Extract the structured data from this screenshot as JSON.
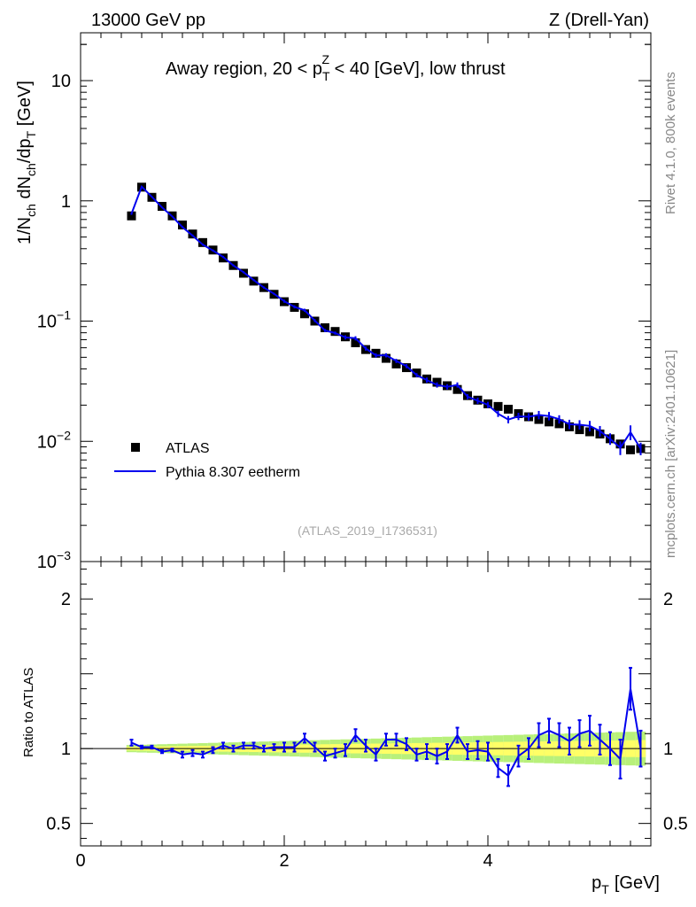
{
  "header": {
    "energy": "13000 GeV pp",
    "process": "Z (Drell-Yan)"
  },
  "side": {
    "rivet": "Rivet 4.1.0,  800k events",
    "mcplots": "mcplots.cern.ch [arXiv:2401.10621]"
  },
  "chart_data": {
    "type": "scatter",
    "title_parts": [
      "Away region, 20 < p",
      "T",
      "Z",
      " < 40 [GeV], low thrust"
    ],
    "analysis": "(ATLAS_2019_I1736531)",
    "xlabel_main": "p",
    "xlabel_sub": "T",
    "xlabel_unit": "[GeV]",
    "ylabel_parts": [
      "1/N",
      "ch",
      " dN",
      "ch",
      "/dp",
      "T",
      " [GeV]"
    ],
    "ratio_ylabel": "Ratio to ATLAS",
    "xlim": [
      0,
      5.6
    ],
    "ylim": [
      0.001,
      25
    ],
    "ratio_ylim": [
      0.35,
      2.25
    ],
    "yscale": "log",
    "x_ticks": [
      "0",
      "2",
      "4"
    ],
    "y_ticks": [
      {
        "base": "10",
        "exp": "",
        "value": 10
      },
      {
        "base": "1",
        "exp": "",
        "value": 1
      },
      {
        "base": "10",
        "exp": "−1",
        "value": 0.1
      },
      {
        "base": "10",
        "exp": "−2",
        "value": 0.01
      },
      {
        "base": "10",
        "exp": "−3",
        "value": 0.001
      }
    ],
    "ratio_ticks": [
      {
        "label": "2",
        "value": 2
      },
      {
        "label": "1",
        "value": 1
      },
      {
        "label": "0.5",
        "value": 0.5
      }
    ],
    "legend": [
      {
        "label": "ATLAS",
        "marker": "square",
        "color": "#000000"
      },
      {
        "label": "Pythia 8.307 eetherm",
        "marker": "line",
        "color": "#0000ee"
      }
    ],
    "series": [
      {
        "name": "ATLAS",
        "color": "#000000",
        "x": [
          0.5,
          0.6,
          0.7,
          0.8,
          0.9,
          1.0,
          1.1,
          1.2,
          1.3,
          1.4,
          1.5,
          1.6,
          1.7,
          1.8,
          1.9,
          2.0,
          2.1,
          2.2,
          2.3,
          2.4,
          2.5,
          2.6,
          2.7,
          2.8,
          2.9,
          3.0,
          3.1,
          3.2,
          3.3,
          3.4,
          3.5,
          3.6,
          3.7,
          3.8,
          3.9,
          4.0,
          4.1,
          4.2,
          4.3,
          4.4,
          4.5,
          4.6,
          4.7,
          4.8,
          4.9,
          5.0,
          5.1,
          5.2,
          5.3,
          5.4,
          5.5
        ],
        "y": [
          0.75,
          1.3,
          1.07,
          0.9,
          0.75,
          0.63,
          0.53,
          0.45,
          0.39,
          0.335,
          0.29,
          0.25,
          0.215,
          0.19,
          0.167,
          0.145,
          0.13,
          0.115,
          0.1,
          0.088,
          0.082,
          0.074,
          0.066,
          0.058,
          0.054,
          0.049,
          0.044,
          0.041,
          0.037,
          0.033,
          0.031,
          0.029,
          0.027,
          0.024,
          0.022,
          0.0205,
          0.0195,
          0.0185,
          0.017,
          0.016,
          0.0152,
          0.0145,
          0.014,
          0.0132,
          0.0125,
          0.012,
          0.0115,
          0.0105,
          0.0095,
          0.0085,
          0.0087
        ]
      },
      {
        "name": "Pythia 8.307 eetherm",
        "color": "#0000ee",
        "x": [
          0.5,
          0.6,
          0.7,
          0.8,
          0.9,
          1.0,
          1.1,
          1.2,
          1.3,
          1.4,
          1.5,
          1.6,
          1.7,
          1.8,
          1.9,
          2.0,
          2.1,
          2.2,
          2.3,
          2.4,
          2.5,
          2.6,
          2.7,
          2.8,
          2.9,
          3.0,
          3.1,
          3.2,
          3.3,
          3.4,
          3.5,
          3.6,
          3.7,
          3.8,
          3.9,
          4.0,
          4.1,
          4.2,
          4.3,
          4.4,
          4.5,
          4.6,
          4.7,
          4.8,
          4.9,
          5.0,
          5.1,
          5.2,
          5.3,
          5.4,
          5.5
        ],
        "ratio": [
          1.04,
          1.01,
          1.01,
          0.98,
          0.99,
          0.96,
          0.97,
          0.96,
          0.99,
          1.02,
          1.0,
          1.02,
          1.02,
          1.0,
          1.01,
          1.01,
          1.01,
          1.07,
          1.01,
          0.95,
          0.97,
          0.99,
          1.09,
          1.02,
          0.96,
          1.06,
          1.06,
          1.03,
          0.96,
          0.98,
          0.95,
          0.98,
          1.09,
          0.98,
          0.99,
          0.98,
          0.87,
          0.82,
          0.95,
          1.0,
          1.09,
          1.12,
          1.09,
          1.05,
          1.1,
          1.12,
          1.06,
          1.0,
          0.93,
          1.4,
          1.0
        ],
        "ratio_err": [
          0.02,
          0.01,
          0.01,
          0.01,
          0.01,
          0.02,
          0.02,
          0.02,
          0.02,
          0.02,
          0.02,
          0.02,
          0.02,
          0.02,
          0.02,
          0.03,
          0.03,
          0.03,
          0.03,
          0.03,
          0.03,
          0.04,
          0.04,
          0.04,
          0.04,
          0.04,
          0.04,
          0.04,
          0.04,
          0.05,
          0.05,
          0.05,
          0.05,
          0.05,
          0.06,
          0.06,
          0.06,
          0.07,
          0.07,
          0.07,
          0.08,
          0.08,
          0.08,
          0.09,
          0.09,
          0.1,
          0.1,
          0.11,
          0.13,
          0.14,
          0.12
        ]
      }
    ],
    "ratio_band": {
      "color_inner": "#ffff66",
      "color_outer": "#b8f07a"
    }
  }
}
